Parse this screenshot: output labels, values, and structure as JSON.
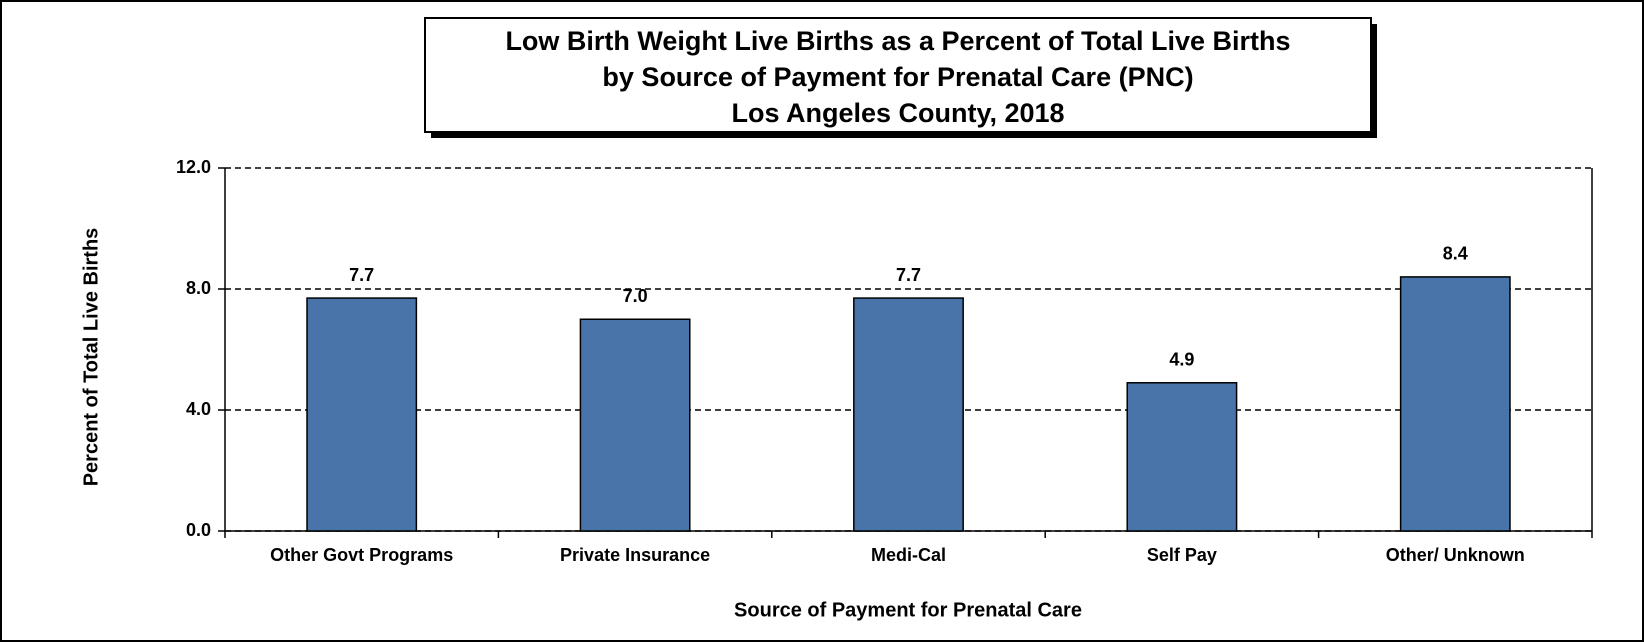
{
  "chart_data": {
    "type": "bar",
    "title": [
      "Low Birth Weight Live Births as a Percent of Total Live Births",
      "by Source of Payment for Prenatal Care (PNC)",
      "Los Angeles County, 2018"
    ],
    "x_label": "Source of Payment for Prenatal Care",
    "y_label": "Percent of Total Live Births",
    "categories": [
      "Other Govt Programs",
      "Private Insurance",
      "Medi-Cal",
      "Self Pay",
      "Other/ Unknown"
    ],
    "values": [
      7.7,
      7.0,
      7.7,
      4.9,
      8.4
    ],
    "value_labels": [
      "7.7",
      "7.0",
      "7.7",
      "4.9",
      "8.4"
    ],
    "color": "#4874a9",
    "ylim": [
      0,
      12
    ],
    "yticks": [
      {
        "value": 0,
        "label": "0.0"
      },
      {
        "value": 4,
        "label": "4.0"
      },
      {
        "value": 8,
        "label": "8.0"
      },
      {
        "value": 12,
        "label": "12.0"
      }
    ],
    "grid": true
  }
}
